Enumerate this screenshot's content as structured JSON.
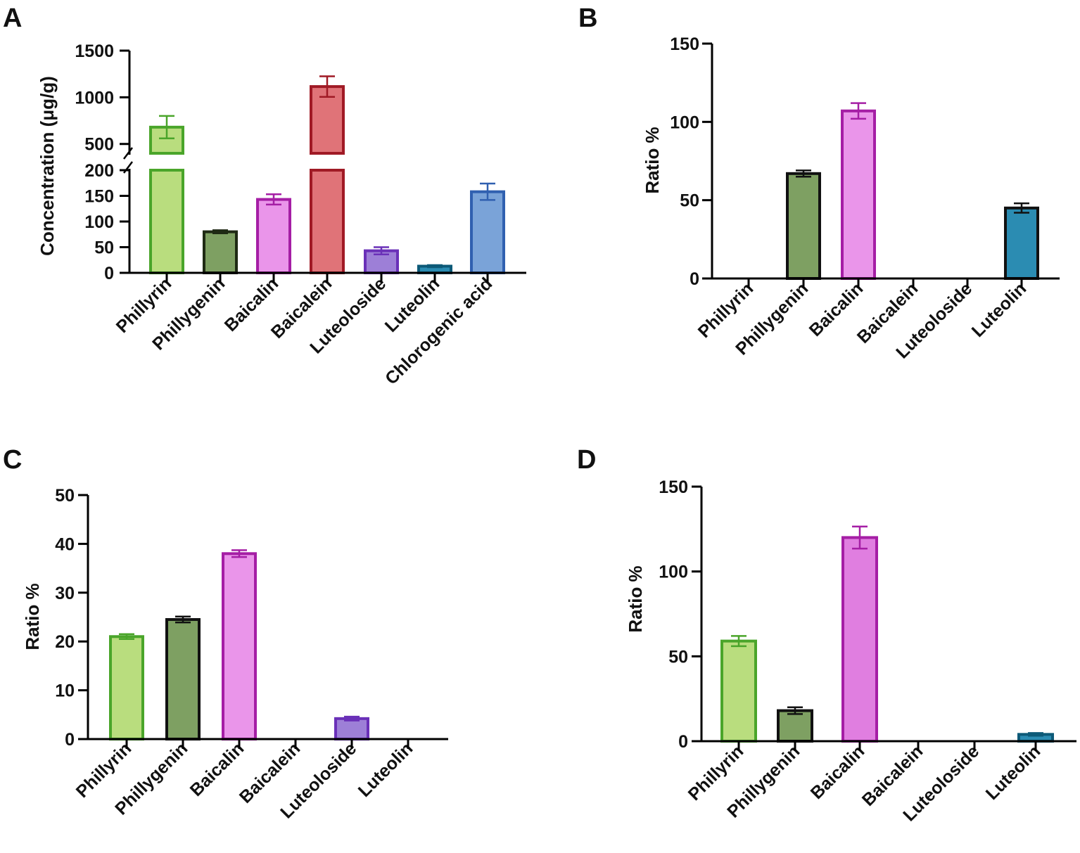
{
  "chart_data": [
    {
      "panel": "A",
      "type": "bar",
      "ylabel": "Concentration (μg/g)",
      "axis_break": true,
      "lower_ylim": [
        0,
        200
      ],
      "upper_ylim": [
        400,
        1500
      ],
      "lower_ticks": [
        "0",
        "50",
        "100",
        "150",
        "200"
      ],
      "upper_ticks": [
        "500",
        "1000",
        "1500"
      ],
      "categories": [
        "Phillyrin",
        "Phillygenin",
        "Baicalin",
        "Baicalein",
        "Luteoloside",
        "Luteolin",
        "Chlorogenic acid"
      ],
      "values": [
        680,
        80,
        143,
        1115,
        43,
        13,
        158
      ],
      "errors": [
        120,
        3,
        10,
        110,
        7,
        2,
        16
      ],
      "fill_colors": [
        "#b9dd7e",
        "#7ea062",
        "#ea95ea",
        "#e07378",
        "#9d7fd7",
        "#2b8cb2",
        "#7aa3d8"
      ],
      "edge_colors": [
        "#4aa52a",
        "#1f2a14",
        "#a51ea5",
        "#a01a25",
        "#6a30b8",
        "#0d5a78",
        "#3060b0"
      ]
    },
    {
      "panel": "B",
      "type": "bar",
      "ylabel": "Ratio %",
      "ylim": [
        0,
        150
      ],
      "ticks": [
        "0",
        "50",
        "100",
        "150"
      ],
      "categories": [
        "Phillyrin",
        "Phillygenin",
        "Baicalin",
        "Baicalein",
        "Luteoloside",
        "Luteolin"
      ],
      "values": [
        0,
        67,
        107,
        0,
        0,
        45
      ],
      "errors": [
        0,
        2,
        5,
        0,
        0,
        3
      ],
      "fill_colors": [
        "#b9dd7e",
        "#7ea062",
        "#ea95ea",
        "#e07378",
        "#9d7fd7",
        "#2b8cb2"
      ],
      "edge_colors": [
        "#4aa52a",
        "#111111",
        "#a51ea5",
        "#a01a25",
        "#6a30b8",
        "#111111"
      ]
    },
    {
      "panel": "C",
      "type": "bar",
      "ylabel": "Ratio %",
      "ylim": [
        0,
        50
      ],
      "ticks": [
        "0",
        "10",
        "20",
        "30",
        "40",
        "50"
      ],
      "categories": [
        "Phillyrin",
        "Phillygenin",
        "Baicalin",
        "Baicalein",
        "Luteoloside",
        "Luteolin"
      ],
      "values": [
        21,
        24.5,
        38,
        0,
        4.2,
        0
      ],
      "errors": [
        0.5,
        0.6,
        0.7,
        0,
        0.4,
        0
      ],
      "fill_colors": [
        "#b9dd7e",
        "#7ea062",
        "#ea95ea",
        "#e07378",
        "#9d7fd7",
        "#2b8cb2"
      ],
      "edge_colors": [
        "#4aa52a",
        "#111111",
        "#a51ea5",
        "#a01a25",
        "#6a30b8",
        "#0d5a78"
      ]
    },
    {
      "panel": "D",
      "type": "bar",
      "ylabel": "Ratio %",
      "ylim": [
        0,
        150
      ],
      "ticks": [
        "0",
        "50",
        "100",
        "150"
      ],
      "categories": [
        "Phillyrin",
        "Phillygenin",
        "Baicalin",
        "Baicalein",
        "Luteoloside",
        "Luteolin"
      ],
      "values": [
        59,
        18,
        120,
        0,
        0,
        4
      ],
      "errors": [
        3,
        2,
        6.5,
        0,
        0,
        0.8
      ],
      "fill_colors": [
        "#b9dd7e",
        "#7ea062",
        "#e07ee0",
        "#e07378",
        "#9d7fd7",
        "#2b8cb2"
      ],
      "edge_colors": [
        "#4aa52a",
        "#111111",
        "#a51ea5",
        "#a01a25",
        "#6a30b8",
        "#0d5a78"
      ]
    }
  ]
}
